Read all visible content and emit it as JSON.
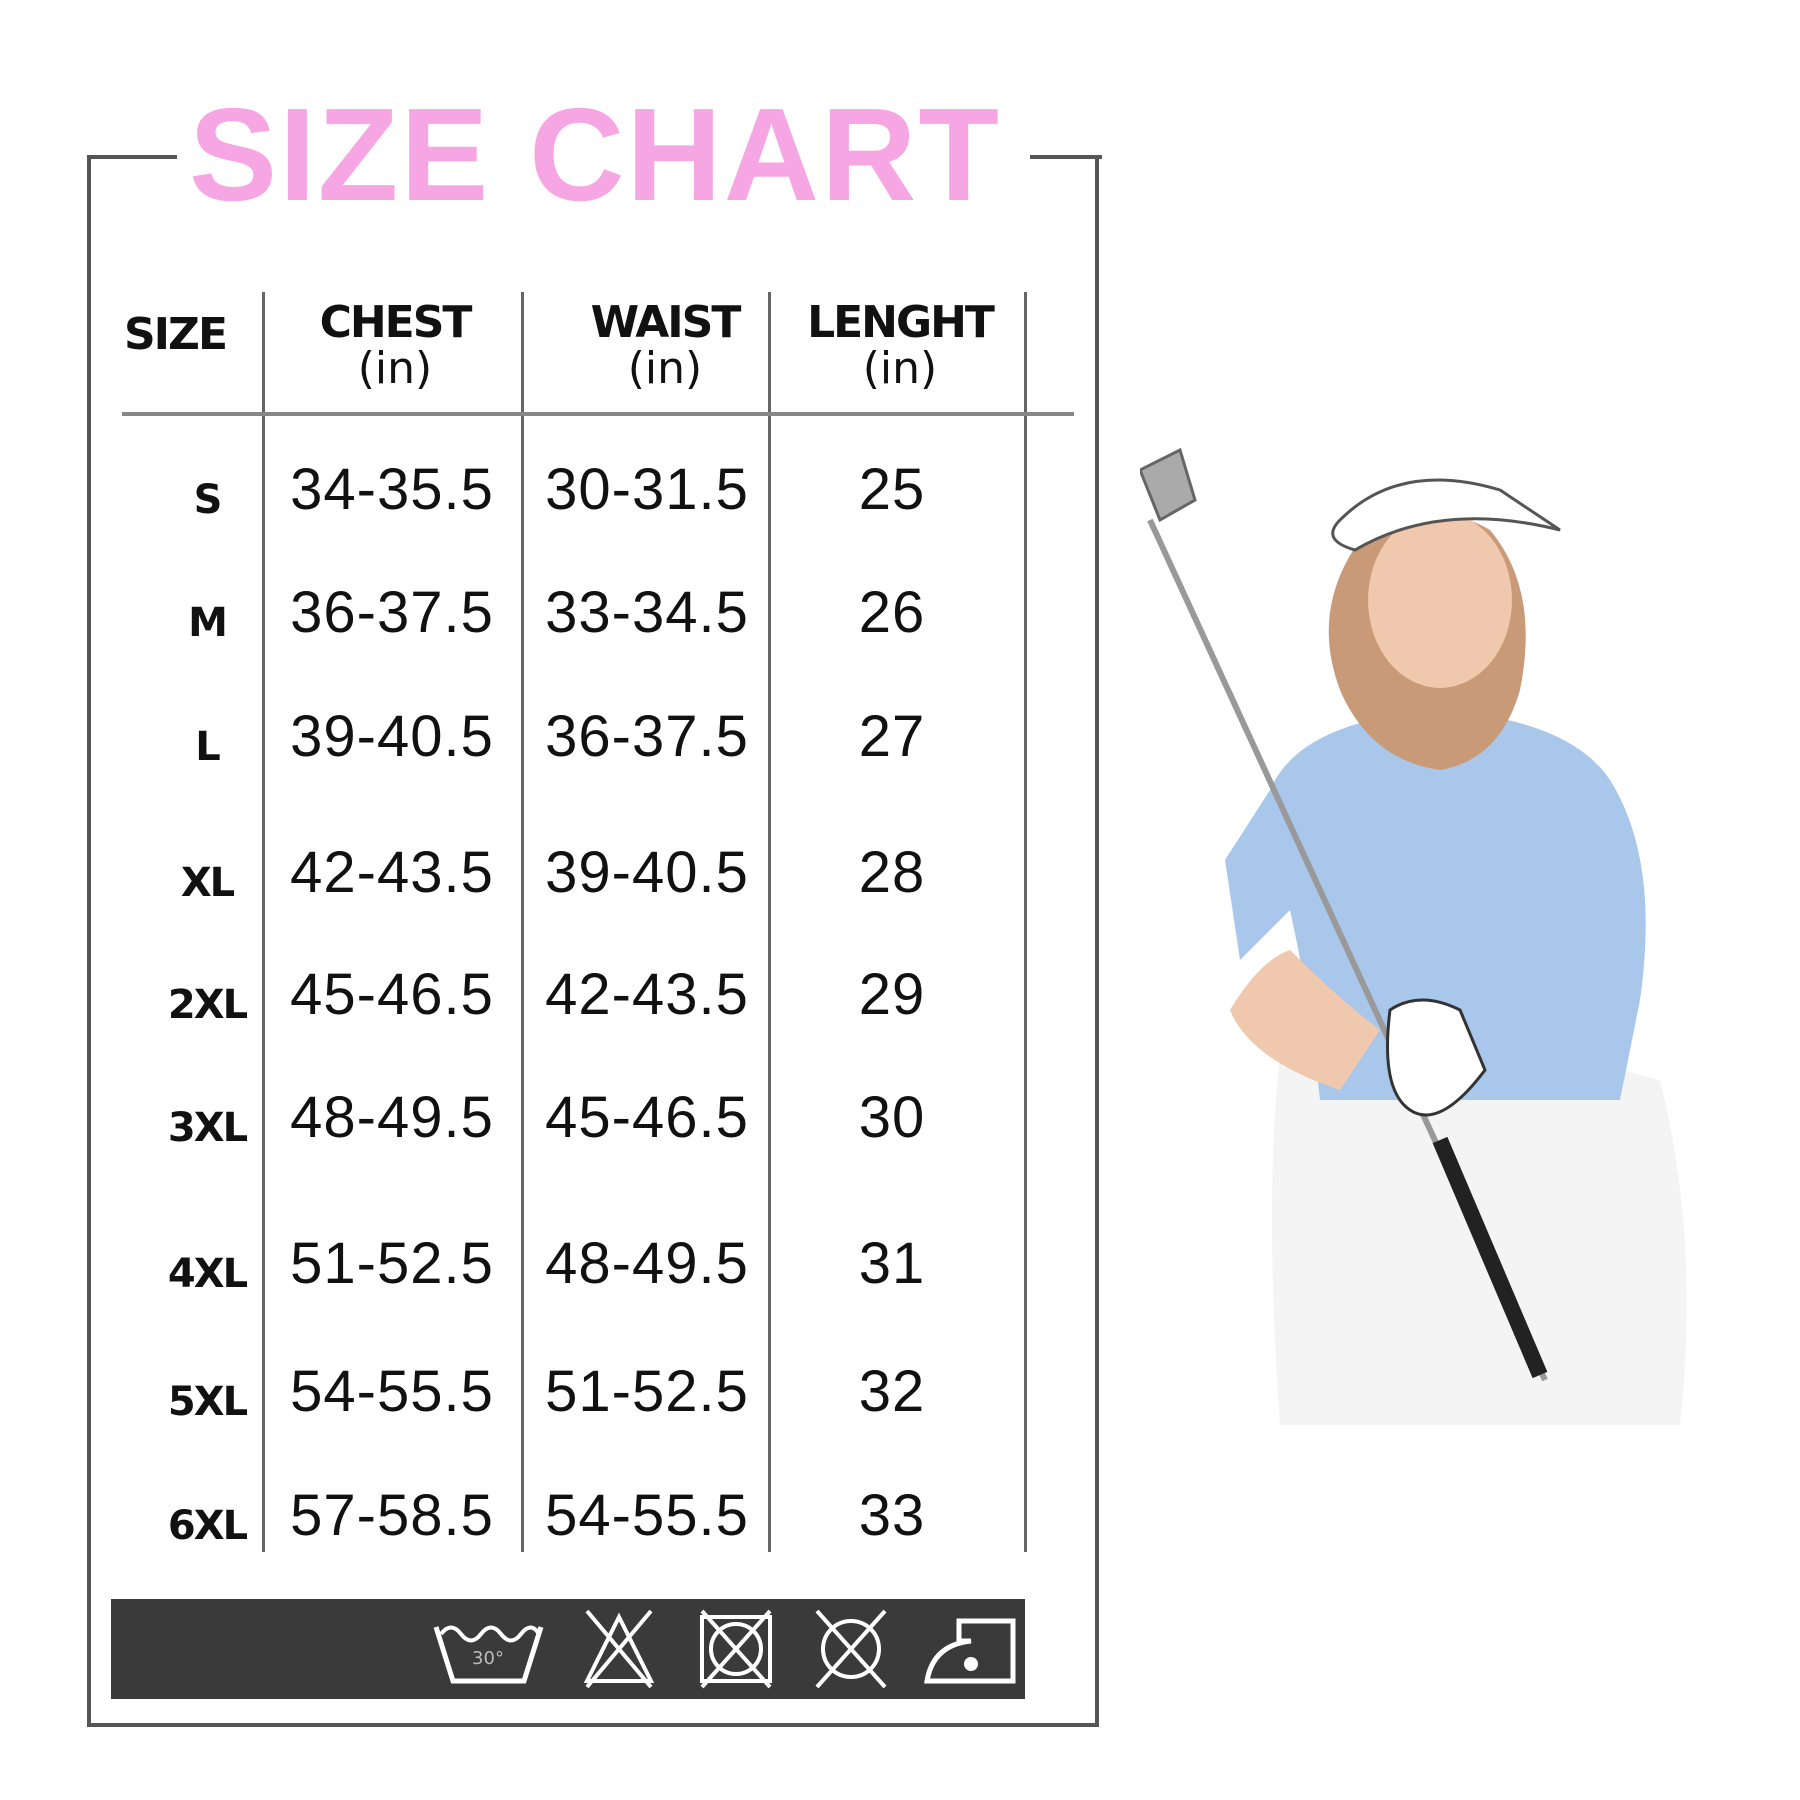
{
  "title": "SIZE CHART",
  "colors": {
    "title": "#f7a6e4",
    "frame": "#555555",
    "care_bar": "#3a3a3a"
  },
  "headers": [
    {
      "label": "SIZE",
      "unit": ""
    },
    {
      "label": "CHEST",
      "unit": "(in)"
    },
    {
      "label": "WAIST",
      "unit": "(in)"
    },
    {
      "label": "LENGHT",
      "unit": "(in)"
    }
  ],
  "rows": [
    {
      "size": "S",
      "chest": "34-35.5",
      "waist": "30-31.5",
      "length": "25"
    },
    {
      "size": "M",
      "chest": "36-37.5",
      "waist": "33-34.5",
      "length": "26"
    },
    {
      "size": "L",
      "chest": "39-40.5",
      "waist": "36-37.5",
      "length": "27"
    },
    {
      "size": "XL",
      "chest": "42-43.5",
      "waist": "39-40.5",
      "length": "28"
    },
    {
      "size": "2XL",
      "chest": "45-46.5",
      "waist": "42-43.5",
      "length": "29"
    },
    {
      "size": "3XL",
      "chest": "48-49.5",
      "waist": "45-46.5",
      "length": "30"
    },
    {
      "size": "4XL",
      "chest": "51-52.5",
      "waist": "48-49.5",
      "length": "31"
    },
    {
      "size": "5XL",
      "chest": "54-55.5",
      "waist": "51-52.5",
      "length": "32"
    },
    {
      "size": "6XL",
      "chest": "57-58.5",
      "waist": "54-55.5",
      "length": "33"
    }
  ],
  "care": {
    "wash_temp": "30°",
    "icons": [
      "wash-30-icon",
      "no-bleach-icon",
      "no-tumble-dry-icon",
      "no-dry-clean-icon",
      "iron-low-icon"
    ]
  },
  "photo": {
    "subject": "woman-golfer-photo"
  }
}
